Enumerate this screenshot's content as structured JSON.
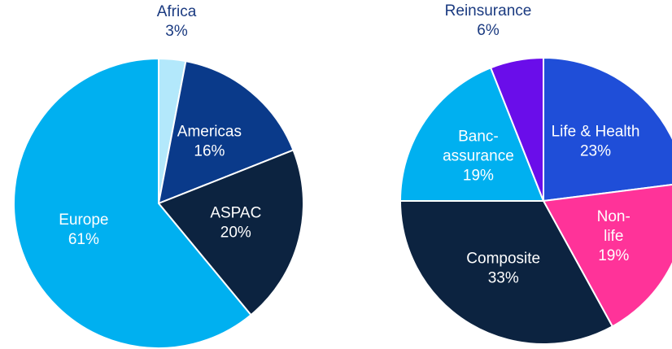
{
  "chart_data": [
    {
      "type": "pie",
      "categories": [
        "Africa",
        "Americas",
        "ASPAC",
        "Europe"
      ],
      "values": [
        3,
        16,
        20,
        61
      ],
      "value_labels": [
        "3%",
        "16%",
        "20%",
        "61%"
      ],
      "colors": [
        "#b3e8fb",
        "#0a3a8a",
        "#0c2340",
        "#00b0f0"
      ]
    },
    {
      "type": "pie",
      "categories": [
        "Life & Health",
        "Non-life",
        "Composite",
        "Banc-assurance",
        "Reinsurance"
      ],
      "values": [
        23,
        19,
        33,
        19,
        6
      ],
      "value_labels": [
        "23%",
        "19%",
        "33%",
        "19%",
        "6%"
      ],
      "colors": [
        "#1f4ed8",
        "#ff3399",
        "#0c2340",
        "#00b0f0",
        "#6a0dea"
      ]
    }
  ]
}
